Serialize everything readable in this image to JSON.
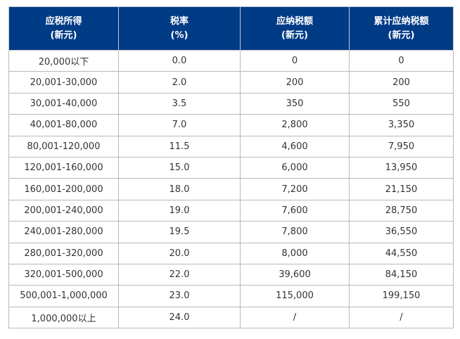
{
  "table": {
    "headers": [
      {
        "line1": "应税所得",
        "line2": "(新元)"
      },
      {
        "line1": "税率",
        "line2": "(%)"
      },
      {
        "line1": "应纳税额",
        "line2": "(新元)"
      },
      {
        "line1": "累计应纳税额",
        "line2": "(新元)"
      }
    ],
    "rows": [
      [
        "20,000以下",
        "0.0",
        "0",
        "0"
      ],
      [
        "20,001-30,000",
        "2.0",
        "200",
        "200"
      ],
      [
        "30,001-40,000",
        "3.5",
        "350",
        "550"
      ],
      [
        "40,001-80,000",
        "7.0",
        "2,800",
        "3,350"
      ],
      [
        "80,001-120,000",
        "11.5",
        "4,600",
        "7,950"
      ],
      [
        "120,001-160,000",
        "15.0",
        "6,000",
        "13,950"
      ],
      [
        "160,001-200,000",
        "18.0",
        "7,200",
        "21,150"
      ],
      [
        "200,001-240,000",
        "19.0",
        "7,600",
        "28,750"
      ],
      [
        "240,001-280,000",
        "19.5",
        "7,800",
        "36,550"
      ],
      [
        "280,001-320,000",
        "20.0",
        "8,000",
        "44,550"
      ],
      [
        "320,001-500,000",
        "22.0",
        "39,600",
        "84,150"
      ],
      [
        "500,001-1,000,000",
        "23.0",
        "115,000",
        "199,150"
      ],
      [
        "1,000,000以上",
        "24.0",
        "/",
        "/"
      ]
    ],
    "colors": {
      "header_bg": "#003b86",
      "header_text": "#ffffff",
      "cell_text": "#333333",
      "border": "#b9b9b9"
    }
  }
}
